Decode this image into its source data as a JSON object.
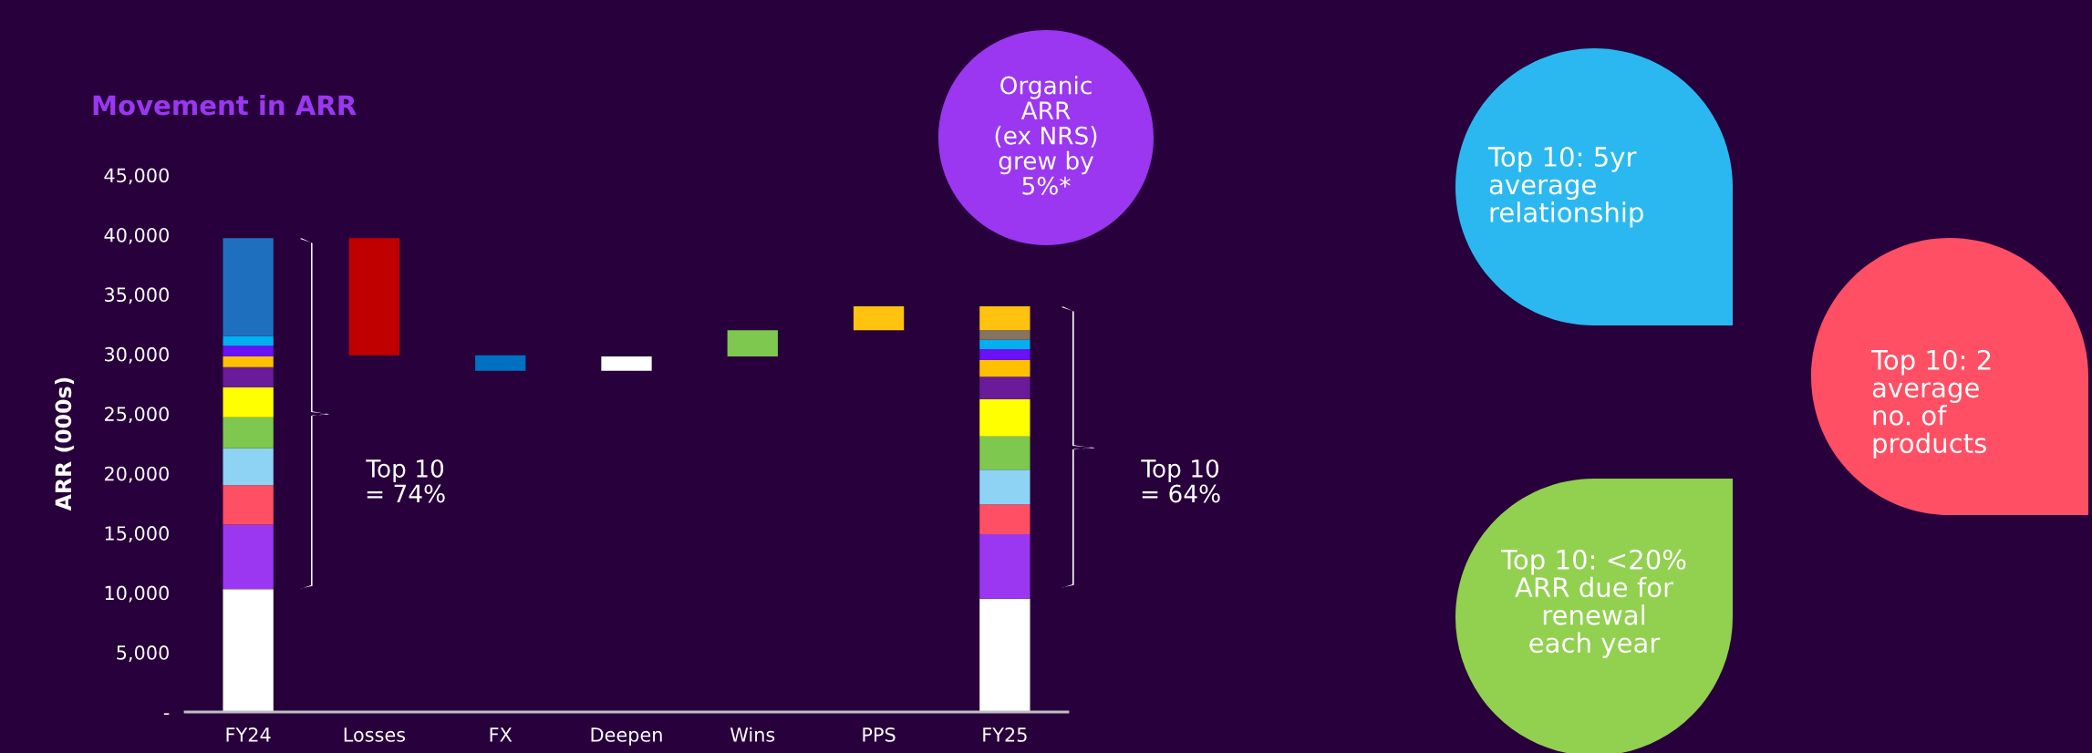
{
  "chart_data": {
    "type": "bar",
    "title": "Movement in ARR",
    "ylabel": "ARR (000s)",
    "categories": [
      "FY24",
      "Losses",
      "FX",
      "Deepen",
      "Wins",
      "PPS",
      "FY25"
    ],
    "stacked": true,
    "series": [
      {
        "color": "#ffffff",
        "values": [
          10300,
          null,
          null,
          null,
          null,
          null,
          9500
        ]
      },
      {
        "color": "#9b37f0",
        "values": [
          5400,
          null,
          null,
          null,
          null,
          null,
          5400
        ]
      },
      {
        "color": "#ff4f64",
        "values": [
          3300,
          null,
          null,
          null,
          null,
          null,
          2500
        ]
      },
      {
        "color": "#8fd3f4",
        "values": [
          3100,
          null,
          null,
          null,
          null,
          null,
          2900
        ]
      },
      {
        "color": "#7ec850",
        "values": [
          2600,
          null,
          null,
          null,
          null,
          null,
          2800
        ]
      },
      {
        "color": "#ffff00",
        "values": [
          2500,
          null,
          null,
          null,
          null,
          null,
          3100
        ]
      },
      {
        "color": "#6a1b9a",
        "values": [
          1700,
          null,
          null,
          null,
          null,
          null,
          1900
        ]
      },
      {
        "color": "#ffc000",
        "values": [
          900,
          null,
          null,
          null,
          null,
          null,
          1400
        ]
      },
      {
        "color": "#6b11f5",
        "values": [
          900,
          null,
          null,
          null,
          null,
          null,
          900
        ]
      },
      {
        "color": "#00b0f0",
        "values": [
          800,
          null,
          null,
          null,
          null,
          null,
          800
        ]
      },
      {
        "colors": [
          "#1f6fbf",
          null,
          null,
          null,
          null,
          null,
          "#857460"
        ],
        "values": [
          8200,
          null,
          null,
          null,
          null,
          null,
          800
        ]
      },
      {
        "color": "#ffc20e",
        "values": [
          null,
          null,
          null,
          null,
          null,
          null,
          2000
        ]
      },
      {
        "colors": [
          null,
          "#c00000",
          "#0070c0",
          "#ffffff",
          "#7ec850",
          "#ffc20e",
          null
        ],
        "values": [
          null,
          -9800,
          -1300,
          1200,
          2200,
          2000,
          null
        ],
        "base": [
          null,
          39700,
          29900,
          28600,
          29800,
          32000,
          null
        ]
      }
    ],
    "ylim": [
      0,
      45000
    ],
    "yticks": [
      {
        "value": 0,
        "label": "-"
      },
      {
        "value": 5000,
        "label": "5,000"
      },
      {
        "value": 10000,
        "label": "10,000"
      },
      {
        "value": 15000,
        "label": "15,000"
      },
      {
        "value": 20000,
        "label": "20,000"
      },
      {
        "value": 25000,
        "label": "25,000"
      },
      {
        "value": 30000,
        "label": "30,000"
      },
      {
        "value": 35000,
        "label": "35,000"
      },
      {
        "value": 40000,
        "label": "40,000"
      },
      {
        "value": 45000,
        "label": "45,000"
      }
    ],
    "grid": false,
    "annotations": [
      "Top 10\n= 74%",
      "Top 10\n= 64%",
      "Organic\nARR\n(ex NRS)\ngrew by\n5%*",
      "Top 10: 5yr\naverage\nrelationship",
      "Top 10: 2\naverage\nno. of\nproducts",
      "Top 10: <20%\nARR due for\nrenewal\neach year"
    ]
  }
}
